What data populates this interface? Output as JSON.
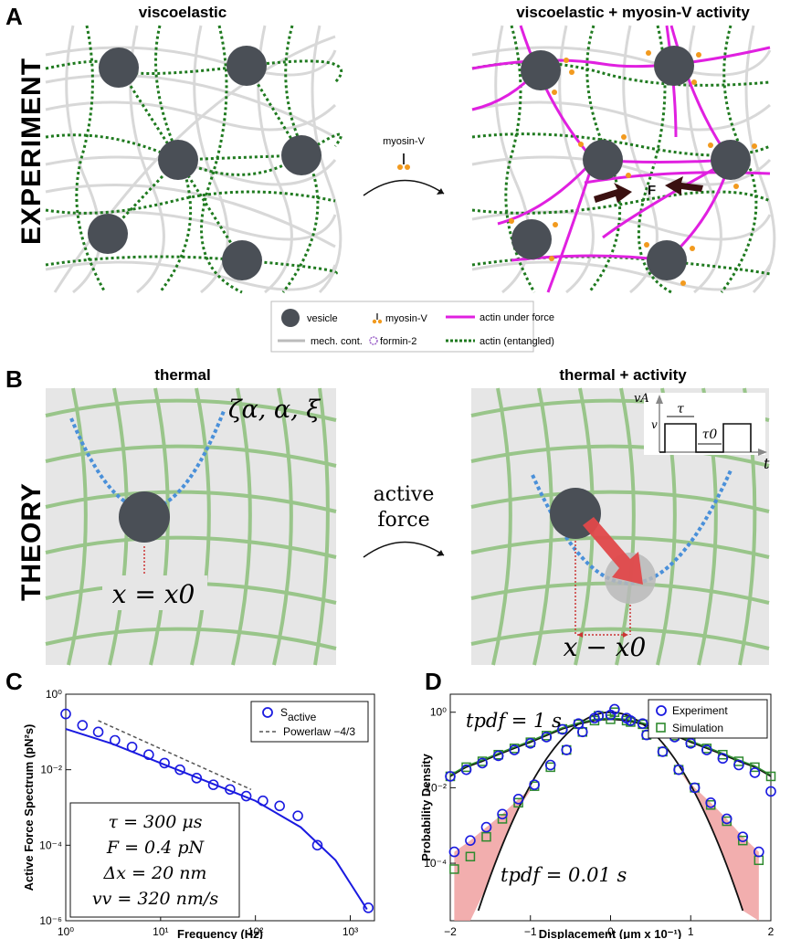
{
  "panel_a": {
    "letter": "A",
    "row_label": "EXPERIMENT",
    "left_title": "viscoelastic",
    "right_title": "viscoelastic + myosin-V activity",
    "arrow_label": "myosin-V",
    "force_label": "F",
    "legend": {
      "vesicle": "vesicle",
      "myosin": "myosin-V",
      "actin_force": "actin under force",
      "mech": "mech. cont.",
      "formin": "formin-2",
      "actin_entangled": "actin (entangled)"
    },
    "colors": {
      "vesicle": "#4a4f56",
      "force_actin": "#e020e0",
      "entangled": "#1f7a1f",
      "myosin": "#f29a1e"
    }
  },
  "panel_b": {
    "letter": "B",
    "row_label": "THEORY",
    "left_title": "thermal",
    "right_title": "thermal + activity",
    "params": "ζα, α, ξ",
    "pos_left": "x = x0",
    "pos_right": "x − x0",
    "arrow_label_1": "active",
    "arrow_label_2": "force",
    "inset": {
      "y": "vA",
      "v": "v",
      "tau": "τ",
      "tau0": "τ0",
      "t": "t"
    },
    "colors": {
      "mesh": "#8cc07a",
      "potential": "#4a90d9",
      "arrow": "#e0484a"
    }
  },
  "panel_c": {
    "letter": "C",
    "ylabel": "Active Force Spectrum (pN²s)",
    "xlabel": "Frequency (Hz)",
    "legend": [
      "S",
      "active",
      "Powerlaw −4/3"
    ],
    "xticks": [
      "10⁰",
      "10¹",
      "10²",
      "10³"
    ],
    "yticks": [
      "10⁰",
      "10⁻²",
      "10⁻⁴",
      "10⁻⁶"
    ],
    "params": [
      "τ = 300 μs",
      "F = 0.4 pN",
      "Δx = 20 nm",
      "vv = 320 nm/s"
    ]
  },
  "panel_d": {
    "letter": "D",
    "ylabel": "Probability Density",
    "xlabel": "Displacement (μm x 10⁻¹)",
    "legend": [
      "Experiment",
      "Simulation"
    ],
    "xticks": [
      "−2",
      "−1",
      "0",
      "1",
      "2"
    ],
    "yticks": [
      "10⁰",
      "10⁻²",
      "10⁻⁴"
    ],
    "t1": "tpdf = 1 s",
    "t2": "tpdf = 0.01 s"
  },
  "chart_data": [
    {
      "type": "scatter",
      "panel": "C",
      "xscale": "log",
      "yscale": "log",
      "xlim": [
        1,
        1800
      ],
      "ylim": [
        1e-06,
        1
      ],
      "xlabel": "Frequency (Hz)",
      "ylabel": "Active Force Spectrum (pN²s)",
      "series": [
        {
          "name": "S active",
          "kind": "markers",
          "x": [
            1,
            1.5,
            2.2,
            3.3,
            5,
            7.5,
            11,
            16,
            24,
            36,
            54,
            80,
            120,
            180,
            280,
            450,
            1550
          ],
          "y": [
            0.3,
            0.15,
            0.1,
            0.06,
            0.04,
            0.025,
            0.015,
            0.01,
            0.006,
            0.004,
            0.003,
            0.002,
            0.0015,
            0.0011,
            0.0006,
            0.0001,
            2.2e-06
          ]
        },
        {
          "kind": "fit",
          "x": [
            1,
            3,
            10,
            30,
            100,
            300,
            700,
            1500
          ],
          "y": [
            0.12,
            0.05,
            0.015,
            0.005,
            0.0015,
            0.0003,
            4e-05,
            2e-06
          ]
        },
        {
          "name": "Powerlaw −4/3",
          "kind": "dashed",
          "x": [
            2.2,
            90
          ],
          "y": [
            0.2,
            0.003
          ]
        }
      ]
    },
    {
      "type": "scatter",
      "panel": "D",
      "yscale": "log",
      "xlim": [
        -2,
        2
      ],
      "ylim": [
        3e-06,
        3
      ],
      "xlabel": "Displacement (μm x 10⁻¹)",
      "ylabel": "Probability Density",
      "series": [
        {
          "name": "Experiment (1 s)",
          "x": [
            -2,
            -1.8,
            -1.6,
            -1.4,
            -1.2,
            -1,
            -0.8,
            -0.6,
            -0.4,
            -0.2,
            0,
            0.2,
            0.4,
            0.6,
            0.8,
            1,
            1.2,
            1.4,
            1.6,
            1.8,
            2
          ],
          "y": [
            0.02,
            0.03,
            0.045,
            0.07,
            0.1,
            0.15,
            0.22,
            0.35,
            0.5,
            0.7,
            0.85,
            0.7,
            0.5,
            0.35,
            0.22,
            0.15,
            0.1,
            0.06,
            0.04,
            0.025,
            0.008
          ]
        },
        {
          "name": "Simulation (1 s)",
          "x": [
            -2,
            -1.8,
            -1.6,
            -1.4,
            -1.2,
            -1,
            -0.8,
            -0.6,
            -0.4,
            -0.2,
            0,
            0.2,
            0.4,
            0.6,
            0.8,
            1,
            1.2,
            1.4,
            1.6,
            1.8,
            2
          ],
          "y": [
            0.02,
            0.035,
            0.05,
            0.075,
            0.11,
            0.16,
            0.24,
            0.36,
            0.48,
            0.6,
            0.65,
            0.6,
            0.48,
            0.36,
            0.24,
            0.16,
            0.11,
            0.075,
            0.05,
            0.035,
            0.02
          ]
        },
        {
          "name": "Experiment (0.01 s)",
          "x": [
            -1.95,
            -1.75,
            -1.55,
            -1.35,
            -1.15,
            -0.95,
            -0.75,
            -0.55,
            -0.35,
            -0.15,
            0.05,
            0.25,
            0.45,
            0.65,
            0.85,
            1.05,
            1.25,
            1.45,
            1.65,
            1.85
          ],
          "y": [
            0.0002,
            0.0004,
            0.0009,
            0.002,
            0.005,
            0.012,
            0.04,
            0.1,
            0.3,
            0.8,
            1.2,
            0.6,
            0.25,
            0.09,
            0.03,
            0.01,
            0.004,
            0.0015,
            0.0005,
            0.0002
          ]
        },
        {
          "name": "Simulation (0.01 s)",
          "x": [
            -1.95,
            -1.75,
            -1.55,
            -1.35,
            -1.15,
            -0.95,
            -0.75,
            -0.55,
            -0.35,
            -0.15,
            0.05,
            0.25,
            0.45,
            0.65,
            0.85,
            1.05,
            1.25,
            1.45,
            1.65,
            1.85
          ],
          "y": [
            7e-05,
            0.00015,
            0.0005,
            0.0015,
            0.004,
            0.011,
            0.035,
            0.1,
            0.3,
            0.8,
            1.0,
            0.55,
            0.25,
            0.09,
            0.03,
            0.01,
            0.0035,
            0.0013,
            0.0004,
            0.00012
          ]
        }
      ]
    }
  ]
}
